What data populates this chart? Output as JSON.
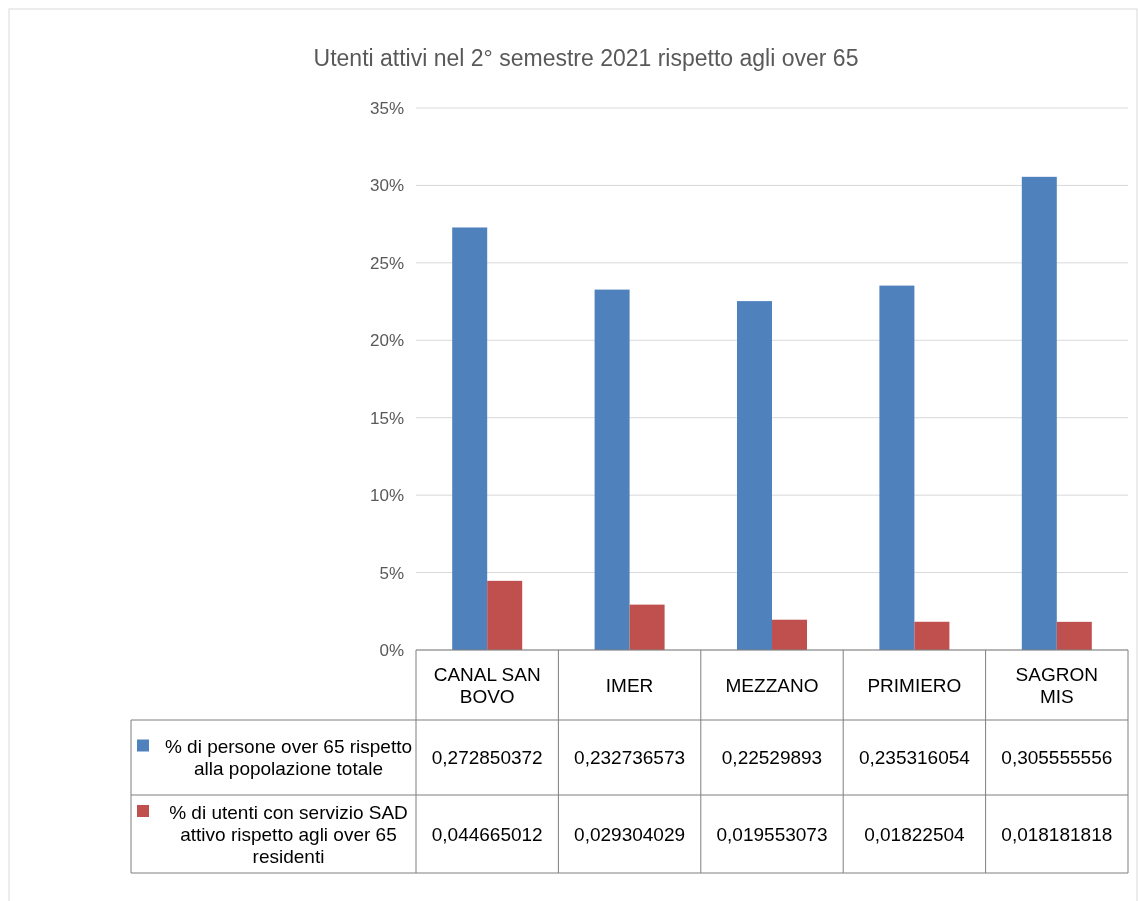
{
  "chart_data": {
    "type": "bar",
    "title": "Utenti attivi nel 2° semestre 2021 rispetto agli over 65",
    "categories": [
      "CANAL SAN BOVO",
      "IMER",
      "MEZZANO",
      "PRIMIERO",
      "SAGRON MIS"
    ],
    "series": [
      {
        "name": "% di persone over 65 rispetto alla popolazione totale",
        "color": "#4f81bd",
        "values": [
          0.272850372,
          0.232736573,
          0.22529893,
          0.235316054,
          0.305555556
        ],
        "value_labels": [
          "0,272850372",
          "0,232736573",
          "0,22529893",
          "0,235316054",
          "0,305555556"
        ]
      },
      {
        "name": "% di utenti con servizio SAD attivo rispetto agli over 65 residenti",
        "color": "#c0504d",
        "values": [
          0.044665012,
          0.029304029,
          0.019553073,
          0.01822504,
          0.018181818
        ],
        "value_labels": [
          "0,044665012",
          "0,029304029",
          "0,019553073",
          "0,01822504",
          "0,018181818"
        ]
      }
    ],
    "ylim": [
      0,
      0.35
    ],
    "yticks": [
      {
        "value": 0,
        "label": "0%"
      },
      {
        "value": 0.05,
        "label": "5%"
      },
      {
        "value": 0.1,
        "label": "10%"
      },
      {
        "value": 0.15,
        "label": "15%"
      },
      {
        "value": 0.2,
        "label": "20%"
      },
      {
        "value": 0.25,
        "label": "25%"
      },
      {
        "value": 0.3,
        "label": "30%"
      },
      {
        "value": 0.35,
        "label": "35%"
      }
    ],
    "grid": "y",
    "legend": "bottom"
  }
}
